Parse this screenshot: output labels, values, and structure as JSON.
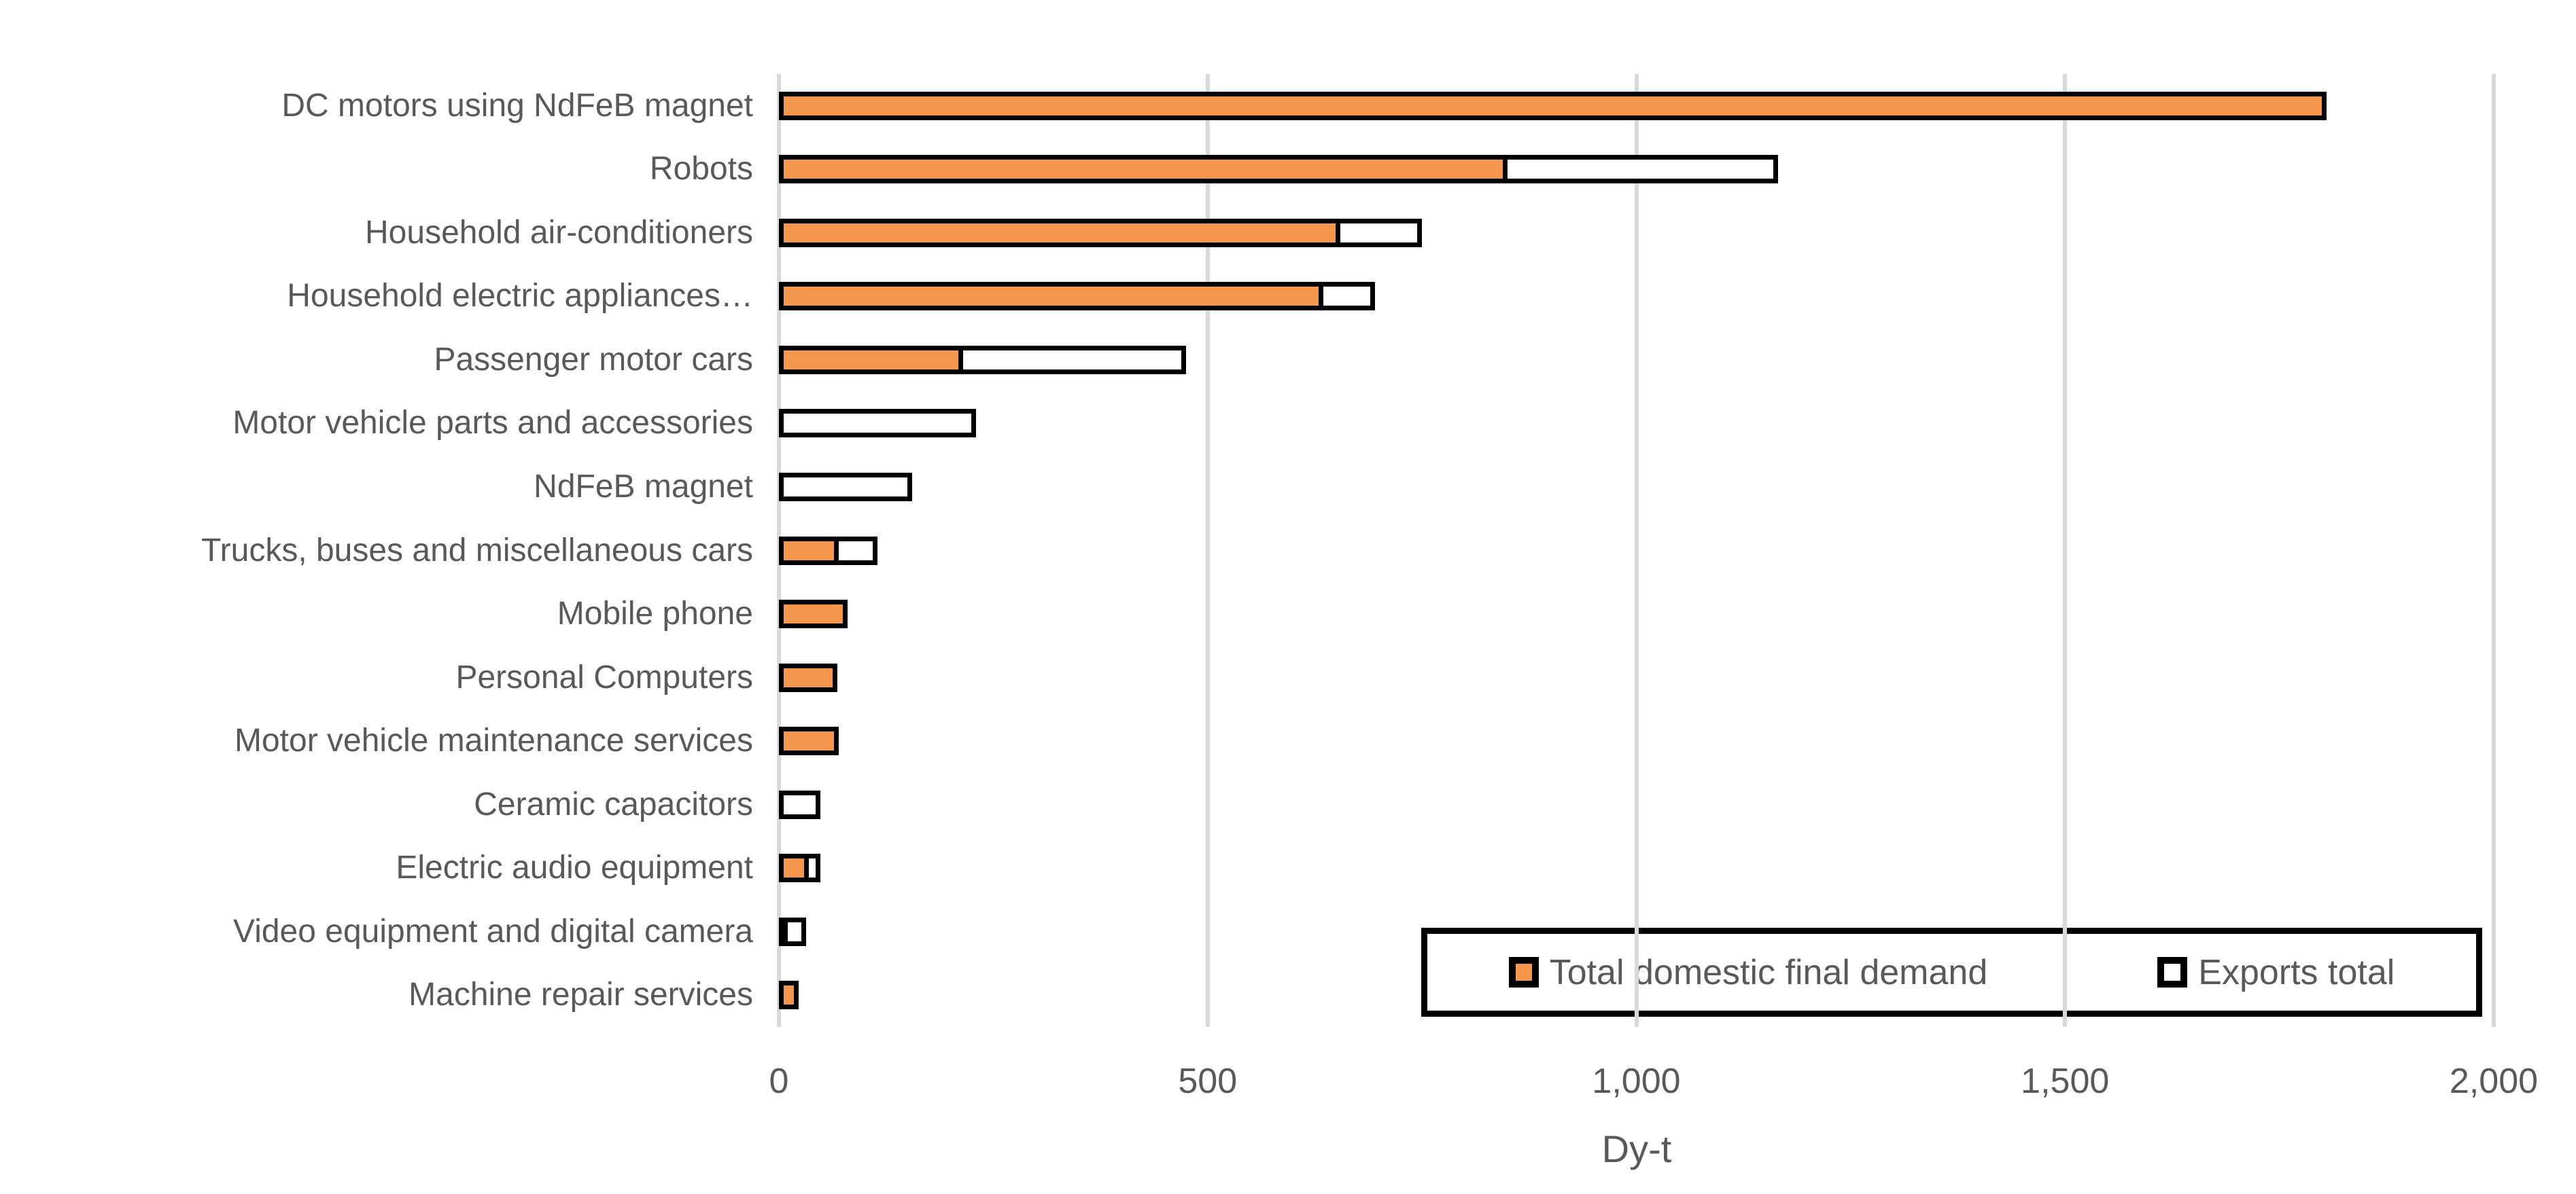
{
  "chart_data": {
    "type": "bar",
    "orientation": "horizontal",
    "stacked": true,
    "title": "",
    "xlabel": "Dy-t",
    "ylabel": "",
    "xlim": [
      0,
      2000
    ],
    "grid": true,
    "legend_position": "inside-bottom-right",
    "background_color": "#FFFFFF",
    "gridline_color": "#D9D9D9",
    "bar_border_color": "#000000",
    "text_color": "#595959",
    "categories": [
      "DC motors using NdFeB magnet",
      "Robots",
      "Household air-conditioners",
      "Household electric appliances…",
      "Passenger motor cars",
      "Motor vehicle parts and accessories",
      "NdFeB magnet",
      "Trucks, buses and miscellaneous cars",
      "Mobile phone",
      "Personal Computers",
      "Motor vehicle maintenance services",
      "Ceramic capacitors",
      "Electric audio equipment",
      "Video equipment and digital camera",
      "Machine repair services"
    ],
    "series": [
      {
        "name": "Total domestic final demand",
        "color": "#F4974D",
        "values": [
          1805,
          850,
          655,
          635,
          215,
          0,
          0,
          70,
          80,
          68,
          70,
          0,
          35,
          10,
          23
        ]
      },
      {
        "name": "Exports total",
        "color": "#FFFFFF",
        "values": [
          0,
          315,
          95,
          60,
          260,
          230,
          155,
          45,
          0,
          0,
          0,
          48,
          13,
          22,
          0
        ]
      }
    ],
    "xticks": [
      {
        "value": 0,
        "label": "0"
      },
      {
        "value": 500,
        "label": "500"
      },
      {
        "value": 1000,
        "label": "1,000"
      },
      {
        "value": 1500,
        "label": "1,500"
      },
      {
        "value": 2000,
        "label": "2,000"
      }
    ]
  }
}
